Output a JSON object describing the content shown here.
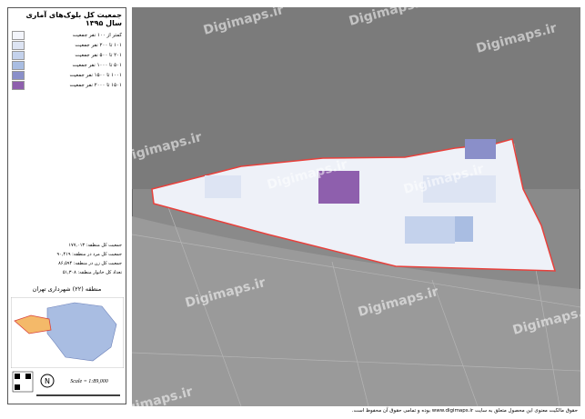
{
  "header": {
    "title": "جمعیت کل بلوک‌های آماری سال ۱۳۹۵"
  },
  "legend": [
    {
      "label": "کمتر از ۱۰۰ نفر جمعیت",
      "color": "#f3f5fb"
    },
    {
      "label": "۱۰۱ تا ۲۰۰ نفر جمعیت",
      "color": "#dde4f3"
    },
    {
      "label": "۲۰۱ تا ۵۰۰ نفر جمعیت",
      "color": "#c4d2ec"
    },
    {
      "label": "۵۰۱ تا ۱۰۰۰ نفر جمعیت",
      "color": "#a9bde2"
    },
    {
      "label": "۱۰۰۱ تا ۱۵۰۰ نفر جمعیت",
      "color": "#8a8fc9"
    },
    {
      "label": "۱۵۰۱ تا ۲۰۰۰ نفر جمعیت",
      "color": "#8e5fad"
    }
  ],
  "stats": [
    "جمعیت کل منطقه: ۱۷۷,۰۱۳",
    "جمعیت کل مرد در منطقه: ۹۰,۴۱۹",
    "جمعیت کل زن در منطقه: ۸۶,۵۹۴",
    "تعداد کل خانوار منطقه: ۵۱,۳۰۸"
  ],
  "region": "منطقه (۲۲) شهرداری تهران",
  "scale": "Scale = 1:89,000",
  "watermark": "Digimaps.ir",
  "footer": "حقوق مالکیت معنوی این محصول متعلق به سایت www.digimaps.ir بوده و تمامی حقوق آن محفوظ است."
}
